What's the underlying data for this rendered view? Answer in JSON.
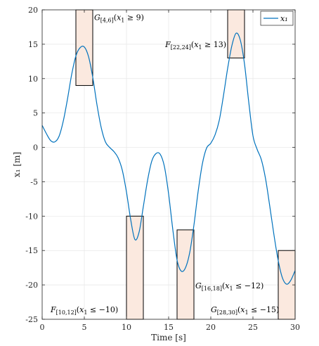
{
  "chart_data": {
    "type": "line",
    "xlabel": "Time [s]",
    "ylabel": "x₁ [m]",
    "xlim": [
      0,
      30
    ],
    "ylim": [
      -25,
      20
    ],
    "xticks": [
      0,
      5,
      10,
      15,
      20,
      25,
      30
    ],
    "yticks": [
      20,
      15,
      10,
      5,
      0,
      -5,
      -10,
      -15,
      -20,
      -25
    ],
    "grid": true,
    "legend": "top-right",
    "series_color": "#0072BD",
    "box_stroke": "#000000",
    "box_fill": "#FBE9DF",
    "series": [
      {
        "name": "x₁",
        "x": [
          0,
          0.5,
          1,
          1.5,
          2,
          2.5,
          3,
          3.5,
          4,
          4.5,
          5,
          5.5,
          6,
          6.5,
          7,
          7.5,
          8,
          8.5,
          9,
          9.5,
          10,
          10.5,
          11,
          11.5,
          12,
          12.5,
          13,
          13.5,
          14,
          14.5,
          15,
          15.5,
          16,
          16.5,
          17,
          17.5,
          18,
          18.5,
          19,
          19.5,
          20,
          20.5,
          21,
          21.5,
          22,
          22.5,
          23,
          23.5,
          24,
          24.5,
          25,
          25.5,
          26,
          26.5,
          27,
          27.5,
          28,
          28.5,
          29,
          29.5,
          30
        ],
        "y": [
          3.2,
          2.0,
          1.0,
          0.8,
          1.6,
          3.8,
          7.0,
          10.6,
          13.3,
          14.5,
          14.6,
          13.2,
          10.2,
          6.2,
          2.9,
          0.8,
          0.0,
          -0.6,
          -1.5,
          -3.3,
          -6.5,
          -10.5,
          -13.4,
          -12.3,
          -8.6,
          -4.8,
          -2.0,
          -0.9,
          -1.0,
          -2.8,
          -6.8,
          -12.0,
          -16.4,
          -18.0,
          -17.5,
          -15.3,
          -11.3,
          -6.4,
          -2.4,
          -0.1,
          0.6,
          1.8,
          3.9,
          7.5,
          11.5,
          14.8,
          16.6,
          15.6,
          12.1,
          6.6,
          1.7,
          -0.3,
          -1.8,
          -4.6,
          -8.6,
          -12.8,
          -16.5,
          -19.0,
          -19.9,
          -19.3,
          -17.9
        ]
      }
    ],
    "boxes": [
      {
        "x0": 4,
        "x1": 6,
        "y0": 9,
        "y1": 20,
        "label": "G[4,6](x₁ ≥ 9)"
      },
      {
        "x0": 10,
        "x1": 12,
        "y0": -25,
        "y1": -10,
        "label": "F[10,12](x₁ ≤ −10)"
      },
      {
        "x0": 16,
        "x1": 18,
        "y0": -25,
        "y1": -12,
        "label": "G[16,18](x₁ ≤ −12)"
      },
      {
        "x0": 22,
        "x1": 24,
        "y0": 13,
        "y1": 20,
        "label": "F[22,24](x₁ ≥ 13)"
      },
      {
        "x0": 28,
        "x1": 30,
        "y0": -25,
        "y1": -15,
        "label": "G[28,30](x₁ ≤ −15)"
      }
    ],
    "annotations": [
      {
        "op": "G",
        "sub": "[4,6]",
        "var": "x",
        "varsub": "1",
        "rest": " ≥ 9)"
      },
      {
        "op": "F",
        "sub": "[10,12]",
        "var": "x",
        "varsub": "1",
        "rest": " ≤ −10)"
      },
      {
        "op": "G",
        "sub": "[16,18]",
        "var": "x",
        "varsub": "1",
        "rest": " ≤ −12)"
      },
      {
        "op": "F",
        "sub": "[22,24]",
        "var": "x",
        "varsub": "1",
        "rest": " ≥ 13)"
      },
      {
        "op": "G",
        "sub": "[28,30]",
        "var": "x",
        "varsub": "1",
        "rest": " ≤ −15)"
      }
    ]
  }
}
